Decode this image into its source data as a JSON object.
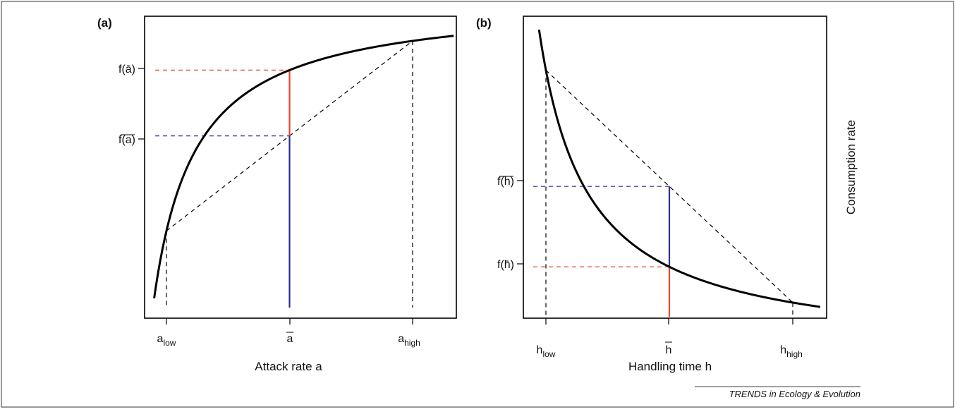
{
  "chart_data": [
    {
      "type": "line",
      "panel_label": "(a)",
      "xlabel": "Attack rate a",
      "ylabel": "",
      "x_ticks": [
        {
          "base": "a",
          "sub": "low",
          "overbar": false
        },
        {
          "base": "a",
          "sub": "",
          "overbar": true
        },
        {
          "base": "a",
          "sub": "high",
          "overbar": false
        }
      ],
      "y_ticks": [
        {
          "text": "f(ā)",
          "kind": "f_of_mean"
        },
        {
          "text": "f(a)",
          "kind": "mean_of_f",
          "overbar": true
        }
      ],
      "series": [
        {
          "role": "saturating curve",
          "color": "#000000",
          "style": "solid"
        },
        {
          "role": "chord between low and high",
          "color": "#000000",
          "style": "dashed"
        },
        {
          "role": "f of mean",
          "color": "#e8452c",
          "style": "solid"
        },
        {
          "role": "mean of f",
          "color": "#2e2e8f",
          "style": "solid"
        }
      ],
      "x_values": {
        "low": 0.2,
        "mean": 2.0,
        "high": 3.8,
        "curve_min": 0.0,
        "curve_max": 4.4
      },
      "curve": {
        "form": "saturating",
        "c": 0.6,
        "y0": 0.0,
        "y1": 0.9
      },
      "grid": false
    },
    {
      "type": "line",
      "panel_label": "(b)",
      "xlabel": "Handling time h",
      "ylabel": "Consumption rate",
      "x_ticks": [
        {
          "base": "h",
          "sub": "low",
          "overbar": false
        },
        {
          "base": "h",
          "sub": "",
          "overbar": true
        },
        {
          "base": "h",
          "sub": "high",
          "overbar": false
        }
      ],
      "y_ticks": [
        {
          "text": "f(h)",
          "kind": "mean_of_f",
          "overbar": true
        },
        {
          "text": "f(h̄)",
          "kind": "f_of_mean"
        }
      ],
      "series": [
        {
          "role": "decreasing curve",
          "color": "#000000",
          "style": "solid"
        },
        {
          "role": "chord between low and high",
          "color": "#000000",
          "style": "dashed"
        },
        {
          "role": "f of mean",
          "color": "#e8452c",
          "style": "solid"
        },
        {
          "role": "mean of f",
          "color": "#2e2e8f",
          "style": "solid"
        }
      ],
      "x_values": {
        "low": 0.2,
        "mean": 2.0,
        "high": 3.8,
        "curve_min": 0.1,
        "curve_max": 4.2
      },
      "curve": {
        "form": "reciprocal",
        "k": 0.6
      },
      "grid": false
    }
  ],
  "colors": {
    "red": "#e8452c",
    "blue": "#2e2e8f",
    "black": "#000000"
  },
  "credit": "TRENDS in Ecology & Evolution"
}
